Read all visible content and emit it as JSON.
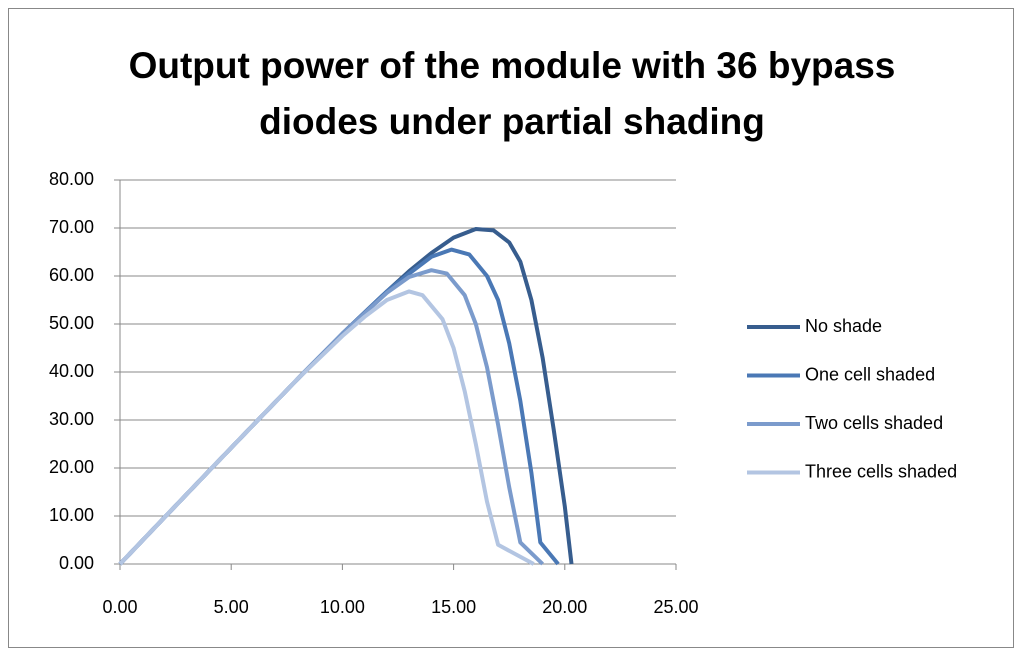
{
  "chart_data": {
    "type": "line",
    "title": "Output power of the module with 36 bypass diodes under partial shading",
    "xlim": [
      0,
      25
    ],
    "xticks": [
      {
        "value": 0,
        "label": "0.00"
      },
      {
        "value": 5,
        "label": "5.00"
      },
      {
        "value": 10,
        "label": "10.00"
      },
      {
        "value": 15,
        "label": "15.00"
      },
      {
        "value": 20,
        "label": "20.00"
      },
      {
        "value": 25,
        "label": "25.00"
      }
    ],
    "ylim": [
      0,
      80
    ],
    "yticks": [
      {
        "value": 0,
        "label": "0.00"
      },
      {
        "value": 10,
        "label": "10.00"
      },
      {
        "value": 20,
        "label": "20.00"
      },
      {
        "value": 30,
        "label": "30.00"
      },
      {
        "value": 40,
        "label": "40.00"
      },
      {
        "value": 50,
        "label": "50.00"
      },
      {
        "value": 60,
        "label": "60.00"
      },
      {
        "value": 70,
        "label": "70.00"
      },
      {
        "value": 80,
        "label": "80.00"
      }
    ],
    "grid": true,
    "legend": "right",
    "series": [
      {
        "name": "No shade",
        "color": "#375d8e",
        "x": [
          0,
          2,
          4,
          6,
          8,
          10,
          12,
          13,
          14,
          15,
          16,
          16.8,
          17.5,
          18,
          18.5,
          19,
          19.5,
          20,
          20.3
        ],
        "values": [
          0,
          9.7,
          19.4,
          29,
          38.6,
          48,
          56.8,
          61,
          64.8,
          68,
          69.8,
          69.5,
          67,
          63,
          55,
          43,
          28,
          12,
          0
        ]
      },
      {
        "name": "One cell shaded",
        "color": "#4a78b5",
        "x": [
          0,
          2,
          4,
          6,
          8,
          10,
          12,
          13,
          14,
          14.9,
          15.7,
          16.5,
          17,
          17.5,
          18,
          18.5,
          18.9,
          19.7
        ],
        "values": [
          0,
          9.7,
          19.4,
          29,
          38.6,
          48,
          56.8,
          60.5,
          64,
          65.5,
          64.5,
          60,
          55,
          46,
          34,
          19,
          4.5,
          0
        ]
      },
      {
        "name": "Two cells shaded",
        "color": "#7b9bcc",
        "x": [
          0,
          2,
          4,
          6,
          8,
          10,
          12,
          13,
          14,
          14.7,
          15.5,
          16,
          16.5,
          17,
          17.5,
          18,
          19
        ],
        "values": [
          0,
          9.7,
          19.4,
          29,
          38.6,
          48,
          56.5,
          59.8,
          61.2,
          60.5,
          56,
          50,
          41,
          29,
          16,
          4.5,
          0
        ]
      },
      {
        "name": "Three cells shaded",
        "color": "#b3c5e2",
        "x": [
          0,
          2,
          4,
          6,
          8,
          10,
          11,
          12,
          13,
          13.6,
          14.5,
          15,
          15.5,
          16,
          16.5,
          17,
          18.6
        ],
        "values": [
          0,
          9.7,
          19.4,
          29,
          38.6,
          47.5,
          51.5,
          55,
          56.8,
          56,
          51,
          45,
          36,
          25,
          13,
          4,
          0
        ]
      }
    ]
  }
}
